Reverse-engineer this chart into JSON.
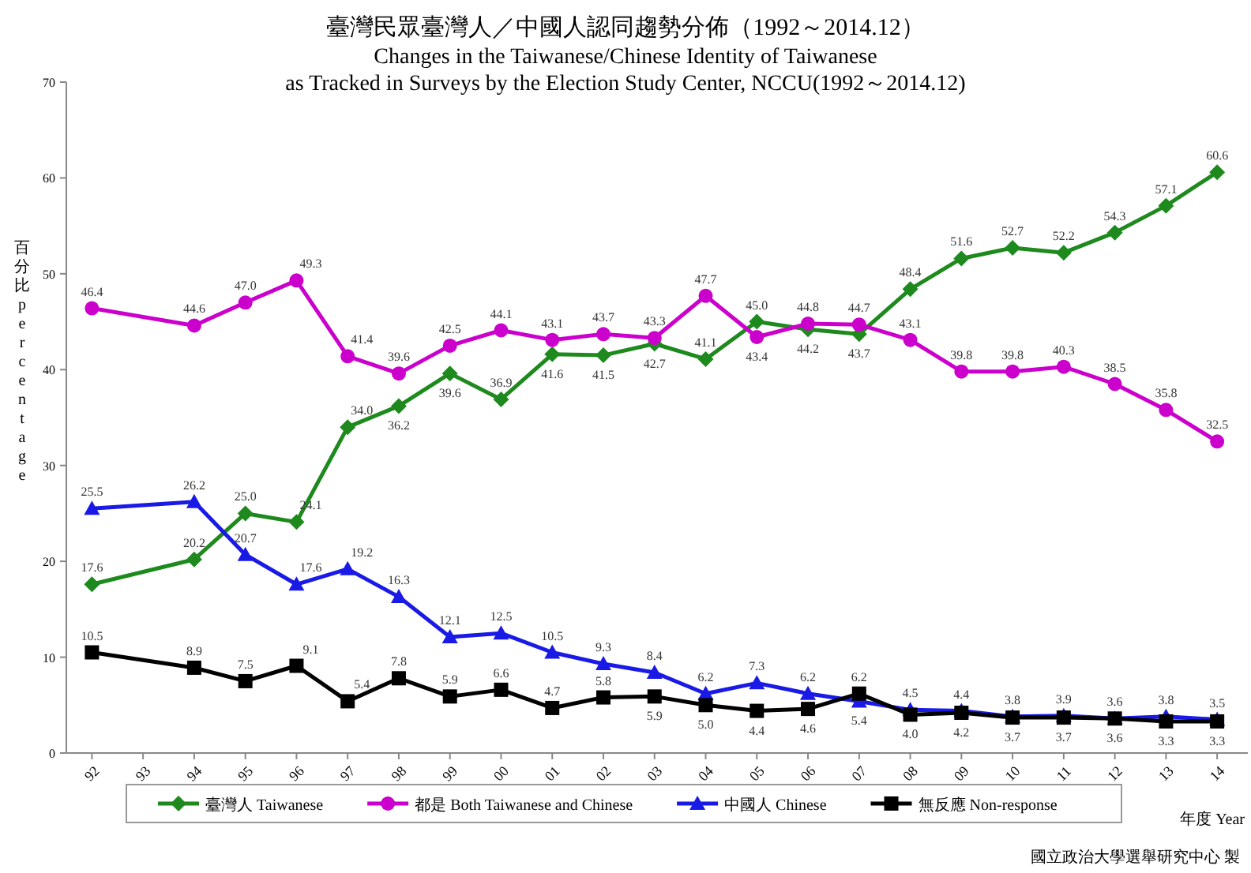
{
  "chart_data": {
    "type": "line",
    "title": "臺灣民眾臺灣人／中國人認同趨勢分佈（1992～2014.12）",
    "subtitle": "Changes in the Taiwanese/Chinese Identity of Taiwanese\nas Tracked in Surveys by the Election Study Center, NCCU(1992～2014.12)",
    "xlabel": "年度 Year",
    "ylabel": "百分比 percentage",
    "x": [
      1992,
      1994,
      1995,
      1996,
      1997,
      1998,
      1999,
      2000,
      2001,
      2002,
      2003,
      2004,
      2005,
      2006,
      2007,
      2008,
      2009,
      2010,
      2011,
      2012,
      2013,
      2014
    ],
    "series": [
      {
        "name": "臺灣人 Taiwanese",
        "color": "#1e8a1e",
        "marker": "diamond",
        "values": [
          17.6,
          20.2,
          25.0,
          24.1,
          34.0,
          36.2,
          39.6,
          36.9,
          41.6,
          41.5,
          42.7,
          41.1,
          45.0,
          44.2,
          43.7,
          48.4,
          51.6,
          52.7,
          52.2,
          54.3,
          57.1,
          60.6
        ],
        "value_labels": [
          "17.6",
          "20.2",
          "25.0",
          "24.1",
          "34.0",
          "36.2",
          "39.6",
          "36.9",
          "41.6",
          "41.5",
          "42.7",
          "41.1",
          "45.0",
          "44.2",
          "43.7",
          "48.4",
          "51.6",
          "52.7",
          "52.2",
          "54.3",
          "57.1",
          "60.6"
        ]
      },
      {
        "name": "都是 Both Taiwanese and Chinese",
        "color": "#cc00cc",
        "marker": "circle",
        "values": [
          46.4,
          44.6,
          47.0,
          49.3,
          41.4,
          39.6,
          42.5,
          44.1,
          43.1,
          43.7,
          43.3,
          47.7,
          43.4,
          44.8,
          44.7,
          43.1,
          39.8,
          39.8,
          40.3,
          38.5,
          35.8,
          32.5
        ],
        "value_labels": [
          "46.4",
          "44.6",
          "47.0",
          "49.3",
          "41.4",
          "39.6",
          "42.5",
          "44.1",
          "43.1",
          "43.7",
          "43.3",
          "47.7",
          "43.4",
          "44.8",
          "44.7",
          "43.1",
          "39.8",
          "39.8",
          "40.3",
          "38.5",
          "35.8",
          "32.5"
        ]
      },
      {
        "name": "中國人 Chinese",
        "color": "#1a1ae6",
        "marker": "triangle",
        "values": [
          25.5,
          26.2,
          20.7,
          17.6,
          19.2,
          16.3,
          12.1,
          12.5,
          10.5,
          9.3,
          8.4,
          6.2,
          7.3,
          6.2,
          5.4,
          4.5,
          4.4,
          3.8,
          3.9,
          3.6,
          3.8,
          3.5
        ],
        "value_labels": [
          "25.5",
          "26.2",
          "20.7",
          "17.6",
          "19.2",
          "16.3",
          "12.1",
          "12.5",
          "10.5",
          "9.3",
          "8.4",
          "6.2",
          "7.3",
          "6.2",
          "5.4",
          "4.5",
          "4.4",
          "3.8",
          "3.9",
          "3.6",
          "3.8",
          "3.5"
        ]
      },
      {
        "name": "無反應 Non-response",
        "color": "#000000",
        "marker": "square",
        "values": [
          10.5,
          8.9,
          7.5,
          9.1,
          5.4,
          7.8,
          5.9,
          6.6,
          4.7,
          5.8,
          5.9,
          5.0,
          4.4,
          4.6,
          6.2,
          4.0,
          4.2,
          3.7,
          3.7,
          3.6,
          3.3,
          3.3
        ],
        "value_labels": [
          "10.5",
          "8.9",
          "7.5",
          "9.1",
          "5.4",
          "7.8",
          "5.9",
          "6.6",
          "4.7",
          "5.8",
          "5.9",
          "5.0",
          "4.4",
          "4.6",
          "6.2",
          "4.0",
          "4.2",
          "3.7",
          "3.7",
          "3.6",
          "3.3",
          "3.3"
        ]
      }
    ],
    "xlim": [
      1991.5,
      2014.6
    ],
    "xticks": [
      {
        "value": 1992,
        "label": "92"
      },
      {
        "value": 1993,
        "label": "93"
      },
      {
        "value": 1994,
        "label": "94"
      },
      {
        "value": 1995,
        "label": "95"
      },
      {
        "value": 1996,
        "label": "96"
      },
      {
        "value": 1997,
        "label": "97"
      },
      {
        "value": 1998,
        "label": "98"
      },
      {
        "value": 1999,
        "label": "99"
      },
      {
        "value": 2000,
        "label": "00"
      },
      {
        "value": 2001,
        "label": "01"
      },
      {
        "value": 2002,
        "label": "02"
      },
      {
        "value": 2003,
        "label": "03"
      },
      {
        "value": 2004,
        "label": "04"
      },
      {
        "value": 2005,
        "label": "05"
      },
      {
        "value": 2006,
        "label": "06"
      },
      {
        "value": 2007,
        "label": "07"
      },
      {
        "value": 2008,
        "label": "08"
      },
      {
        "value": 2009,
        "label": "09"
      },
      {
        "value": 2010,
        "label": "10"
      },
      {
        "value": 2011,
        "label": "11"
      },
      {
        "value": 2012,
        "label": "12"
      },
      {
        "value": 2013,
        "label": "13"
      },
      {
        "value": 2014,
        "label": "14"
      }
    ],
    "ylim": [
      0,
      70
    ],
    "yticks": [
      0,
      10,
      20,
      30,
      40,
      50,
      60,
      70
    ],
    "grid": false,
    "legend": "bottom",
    "annotations": [
      "國立政治大學選舉研究中心 製"
    ]
  }
}
